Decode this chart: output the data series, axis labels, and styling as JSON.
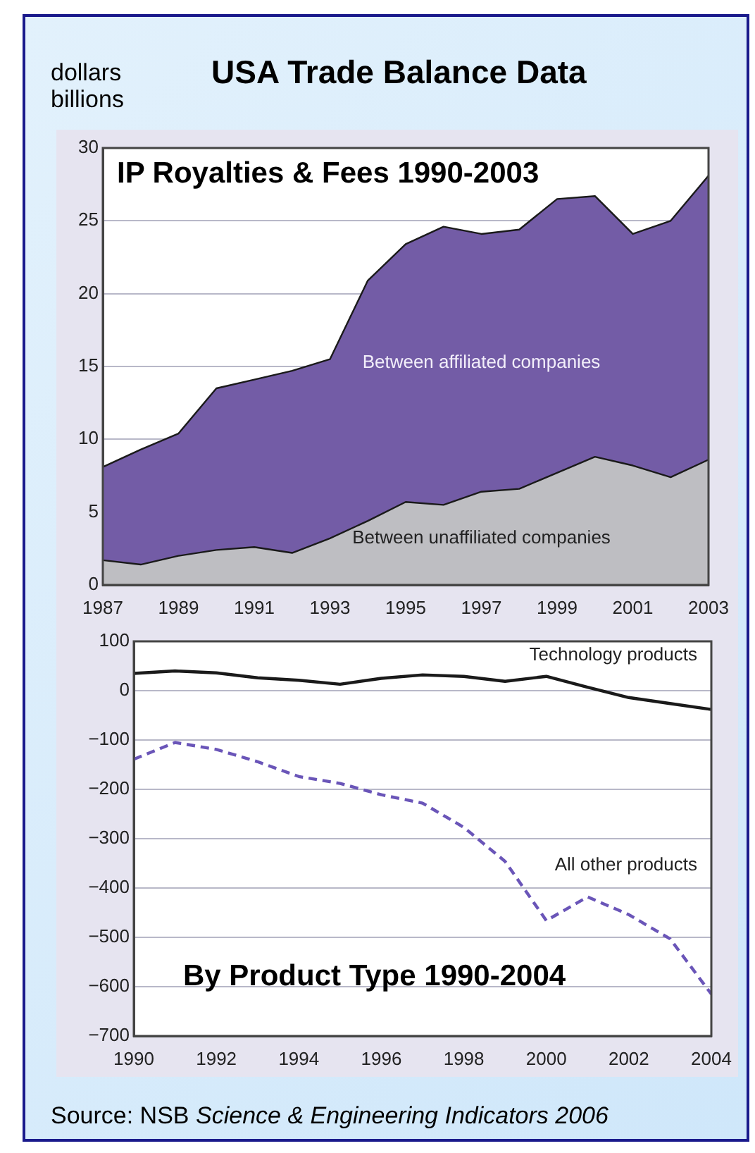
{
  "chart_data": [
    {
      "type": "area",
      "title": "USA Trade Balance Data",
      "subtitle": "IP Royalties & Fees 1990-2003",
      "ylabel": "dollars billions",
      "stacked": true,
      "x": [
        1987,
        1988,
        1989,
        1990,
        1991,
        1992,
        1993,
        1994,
        1995,
        1996,
        1997,
        1998,
        1999,
        2000,
        2001,
        2002,
        2003
      ],
      "series": [
        {
          "name": "Between unaffiliated companies",
          "color": "#bebec2",
          "values": [
            1.7,
            1.4,
            2.0,
            2.4,
            2.6,
            2.2,
            3.2,
            4.4,
            5.7,
            5.5,
            6.4,
            6.6,
            7.7,
            8.8,
            8.2,
            7.4,
            8.6
          ]
        },
        {
          "name": "Between affiliated companies",
          "color": "#735ca6",
          "values": [
            6.4,
            7.9,
            8.4,
            11.1,
            11.5,
            12.5,
            12.3,
            16.5,
            17.7,
            19.1,
            17.7,
            17.8,
            18.8,
            17.9,
            15.9,
            17.6,
            19.5
          ]
        }
      ],
      "xlim": [
        1987,
        2003
      ],
      "xticks": [
        1987,
        1989,
        1991,
        1993,
        1995,
        1997,
        1999,
        2001,
        2003
      ],
      "ylim": [
        0,
        30
      ],
      "yticks": [
        0,
        5,
        10,
        15,
        20,
        25,
        30
      ],
      "grid": "y",
      "legend": false,
      "marker": "none"
    },
    {
      "type": "line",
      "title": "By Product Type 1990-2004",
      "x": [
        1990,
        1991,
        1992,
        1993,
        1994,
        1995,
        1996,
        1997,
        1998,
        1999,
        2000,
        2001,
        2002,
        2003,
        2004
      ],
      "series": [
        {
          "name": "Technology products",
          "color": "#1a1a1a",
          "line_style": "solid",
          "values": [
            35,
            40,
            36,
            26,
            21,
            13,
            25,
            32,
            29,
            19,
            29,
            7,
            -14,
            -26,
            -38
          ]
        },
        {
          "name": "All other products",
          "color": "#6a55b8",
          "line_style": "dashed",
          "values": [
            -139,
            -105,
            -119,
            -144,
            -174,
            -188,
            -211,
            -228,
            -277,
            -346,
            -466,
            -418,
            -454,
            -503,
            -615
          ]
        }
      ],
      "xlim": [
        1990,
        2004
      ],
      "xticks": [
        1990,
        1992,
        1994,
        1996,
        1998,
        2000,
        2002,
        2004
      ],
      "ylim": [
        -700,
        100
      ],
      "yticks": [
        {
          "value": -700,
          "label": "−700"
        },
        {
          "value": -600,
          "label": "−600"
        },
        {
          "value": -500,
          "label": "−500"
        },
        {
          "value": -400,
          "label": "−400"
        },
        {
          "value": -300,
          "label": "−300"
        },
        {
          "value": -200,
          "label": "−200"
        },
        {
          "value": -100,
          "label": "−100"
        },
        0,
        100
      ],
      "grid": "y",
      "legend": false,
      "marker": "none",
      "annotations": [
        "Source: NSB $^{}$Science & Engineering Indicators 2006"
      ]
    }
  ]
}
